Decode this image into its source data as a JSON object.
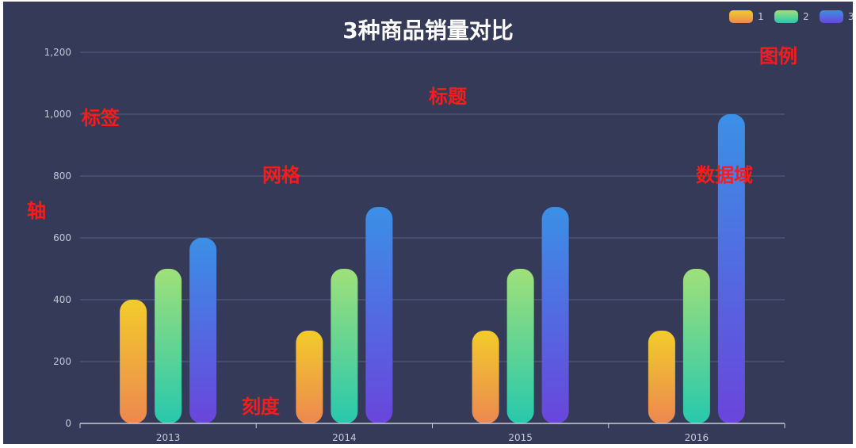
{
  "chart_data": {
    "type": "bar",
    "title": "3种商品销量对比",
    "categories": [
      "2013",
      "2014",
      "2015",
      "2016"
    ],
    "series": [
      {
        "name": "1",
        "values": [
          400,
          300,
          300,
          300
        ]
      },
      {
        "name": "2",
        "values": [
          500,
          500,
          500,
          500
        ]
      },
      {
        "name": "3",
        "values": [
          600,
          700,
          700,
          1000
        ]
      }
    ],
    "ylim": [
      0,
      1200
    ],
    "yticks": [
      "0",
      "200",
      "400",
      "600",
      "800",
      "1,000",
      "1,200"
    ],
    "grid": true,
    "legend": "top-right",
    "background": "#343a58",
    "gradients": [
      [
        "#f2cc2b",
        "#ec8850"
      ],
      [
        "#9fe07a",
        "#27c8ad"
      ],
      [
        "#3b90e6",
        "#6a45dc"
      ]
    ]
  },
  "annotations": {
    "legend": "图例",
    "title": "标题",
    "label": "标签",
    "grid": "网格",
    "data_area": "数据域",
    "axis": "轴",
    "tick": "刻度"
  }
}
